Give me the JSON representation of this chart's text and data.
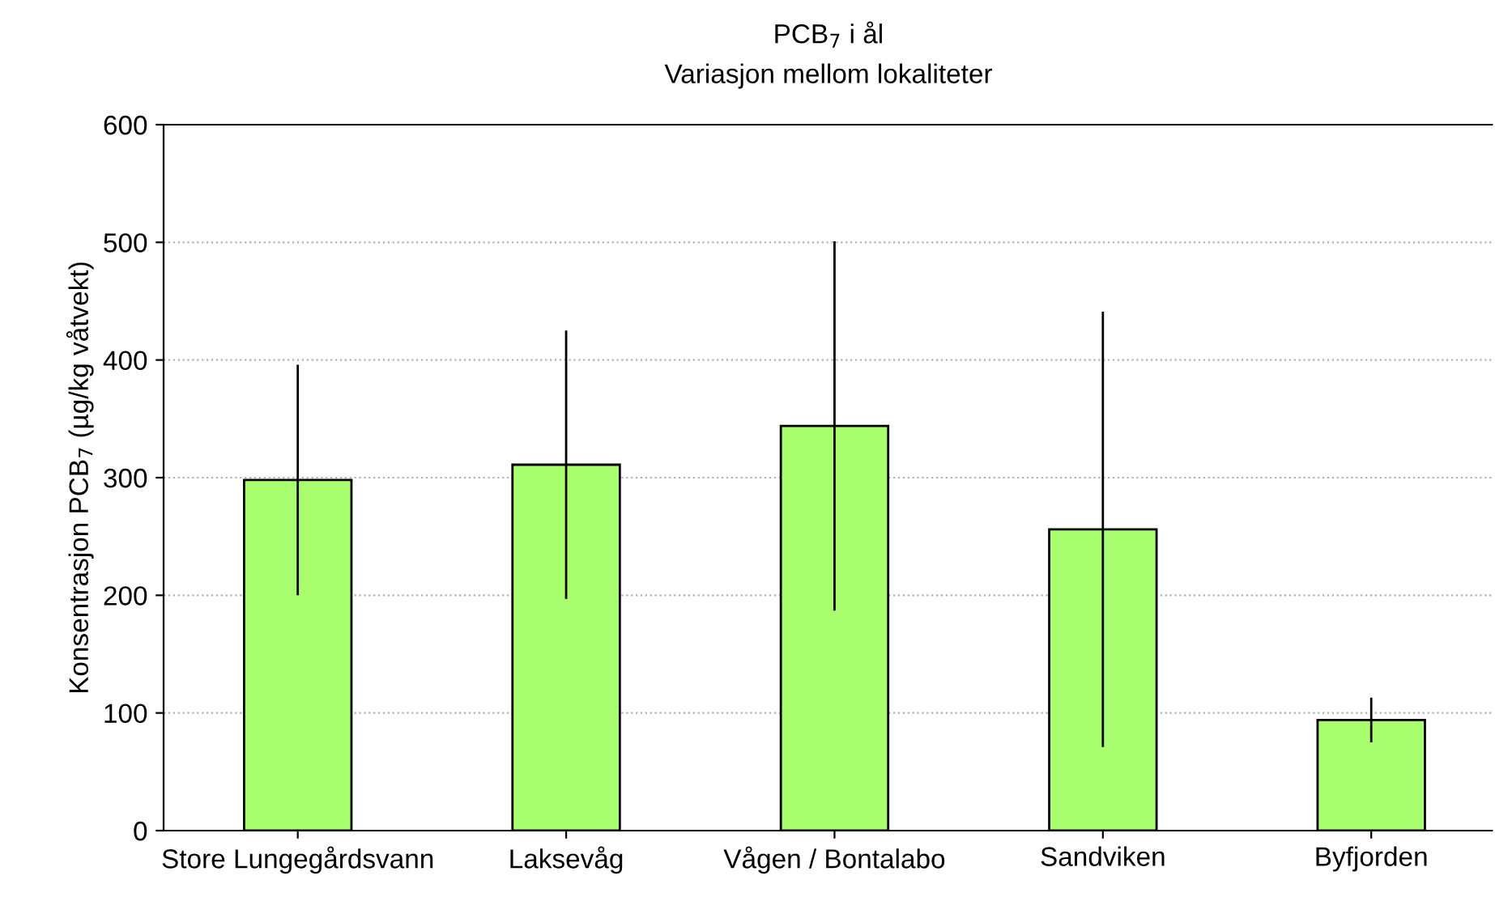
{
  "chart_data": {
    "type": "bar",
    "title": "PCB$_{7}$ i ål",
    "subtitle": "Variasjon mellom lokaliteter",
    "ylabel": "Konsentrasjon PCB$_{7}$ (µg/kg våtvekt)",
    "categories": [
      "Store Lungegårdsvann",
      "Laksevåg",
      "Vågen / Bontalabo",
      "Sandviken",
      "Byfjorden"
    ],
    "values": [
      298,
      311,
      344,
      256,
      94
    ],
    "errors": [
      98,
      114,
      157,
      185,
      19
    ],
    "color": "#aaff70",
    "ylim": [
      0,
      600
    ],
    "yticks": [
      0,
      100,
      200,
      300,
      400,
      500,
      600
    ],
    "grid": "y"
  }
}
